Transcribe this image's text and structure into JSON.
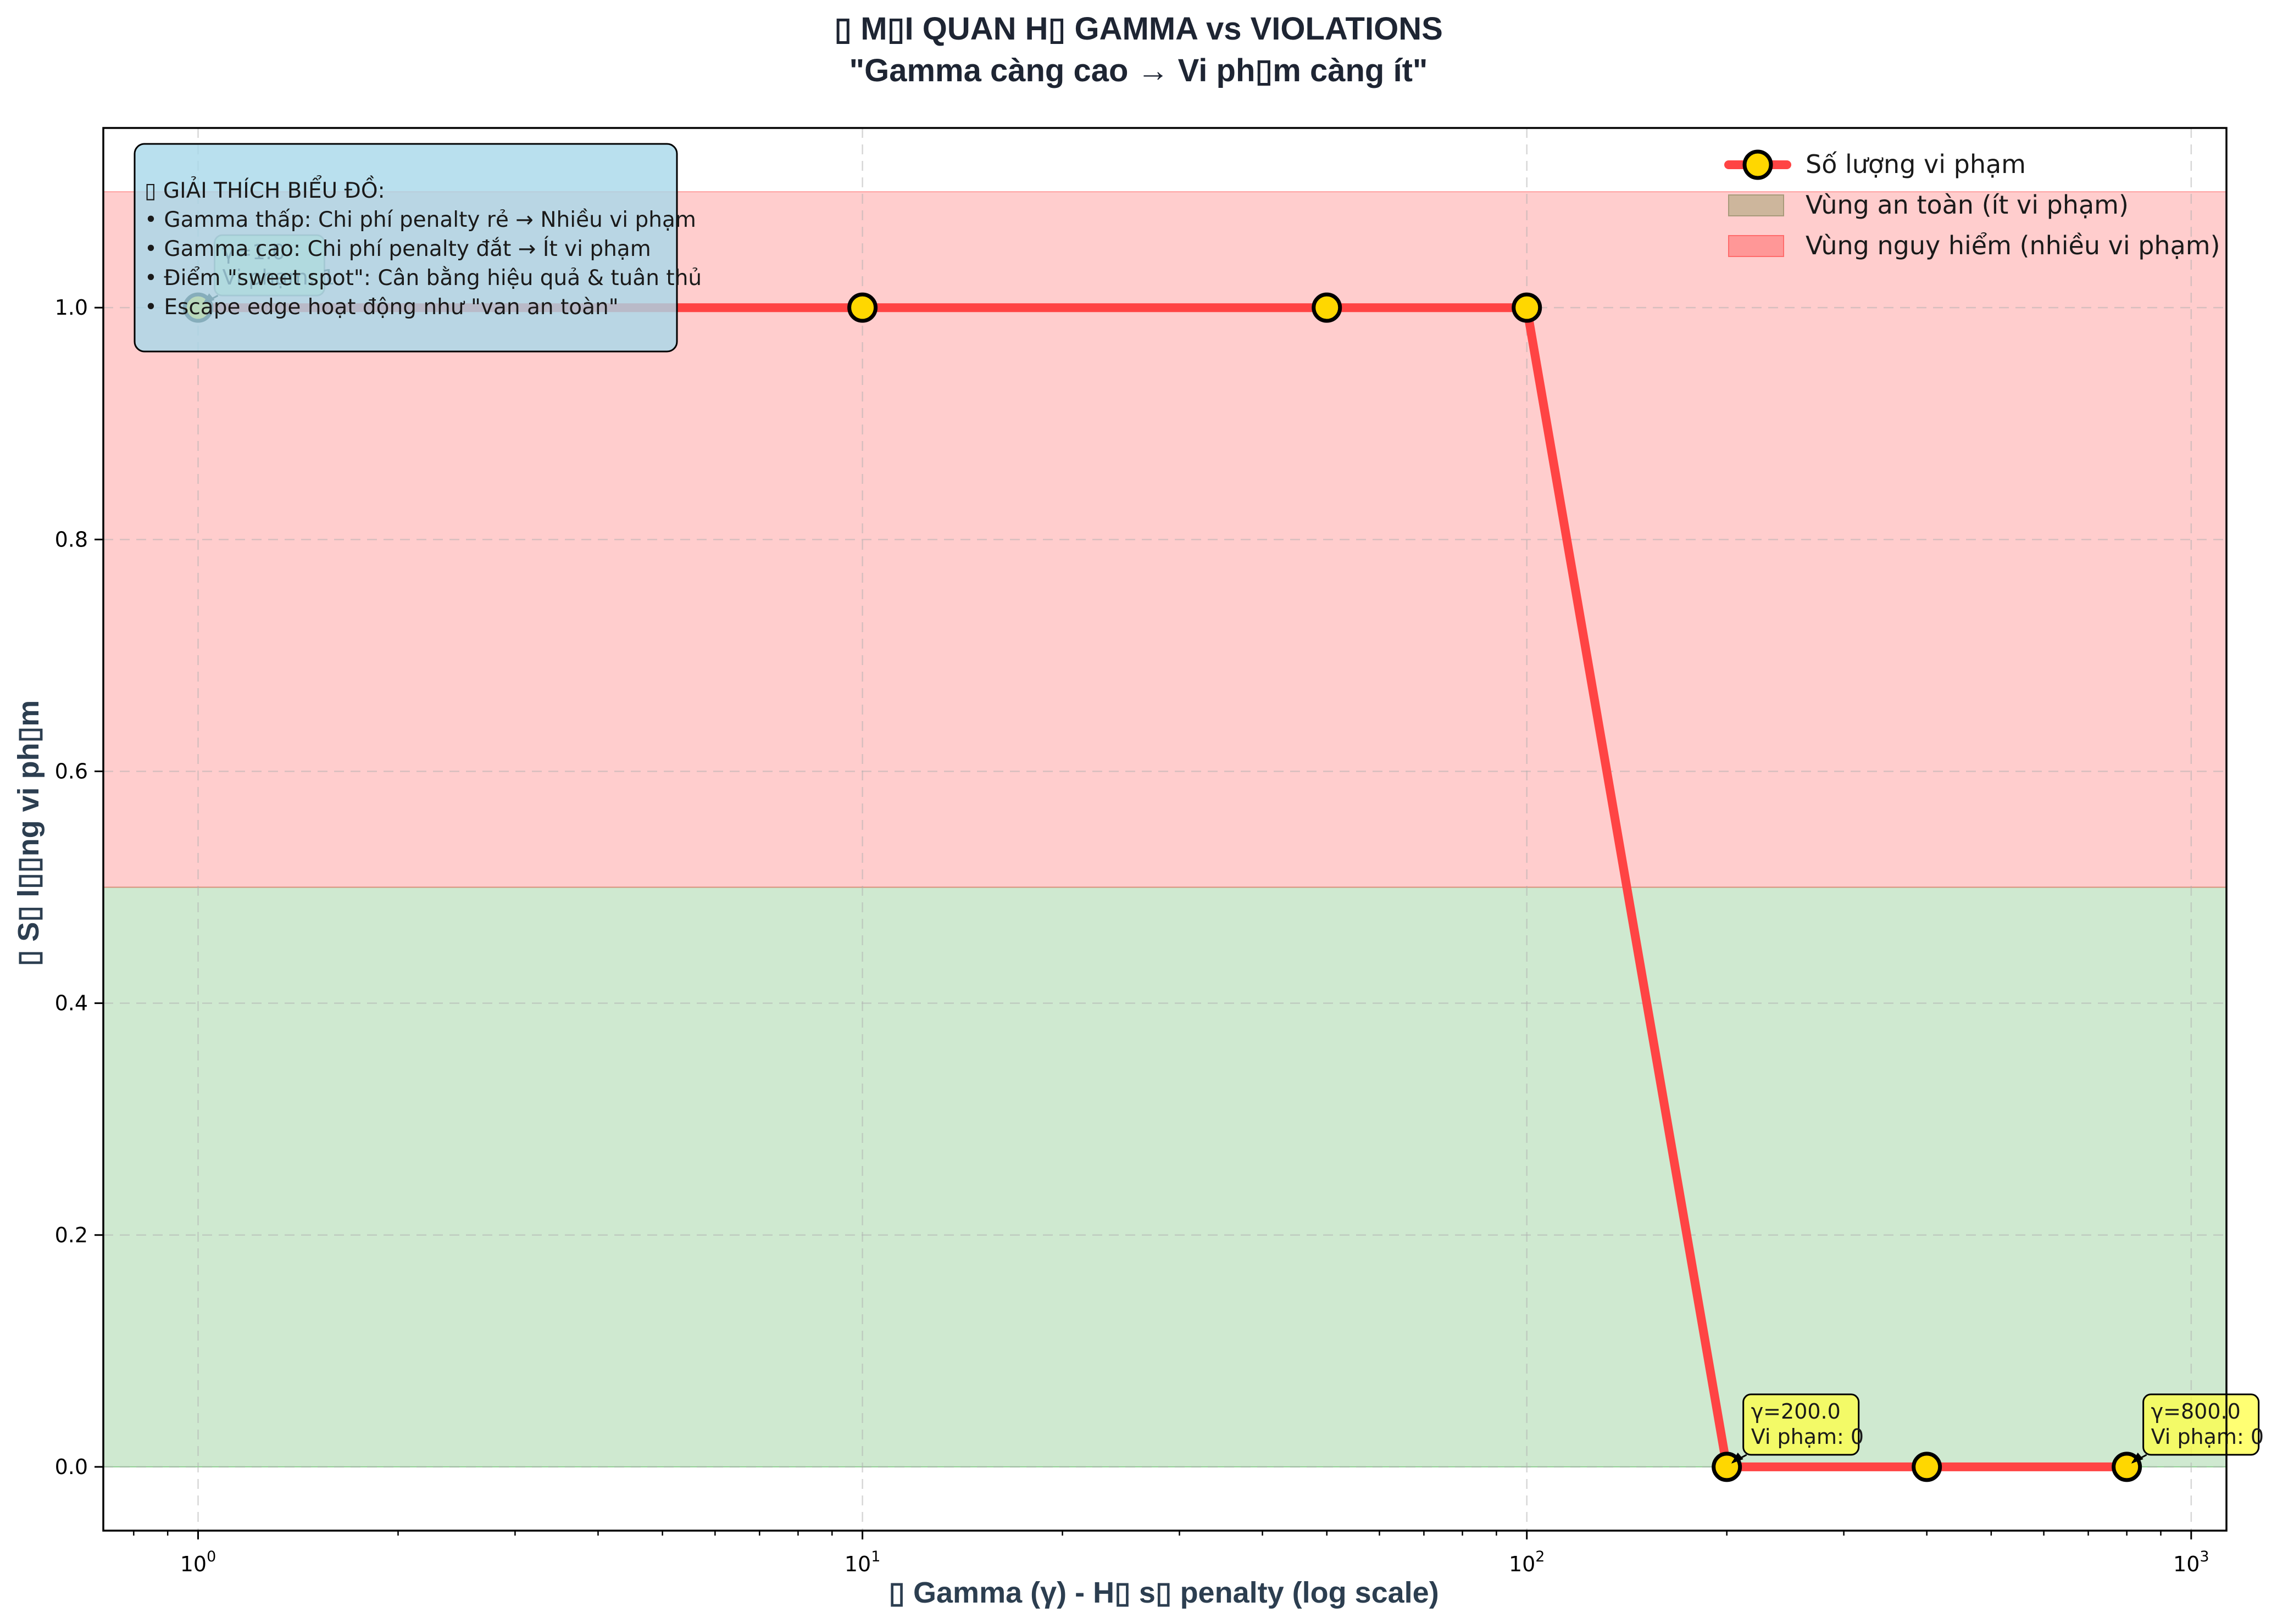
{
  "chart_data": {
    "type": "line",
    "title_line1": "▯ M▯I QUAN H▯ GAMMA vs VIOLATIONS",
    "title_line2": "\"Gamma càng cao → Vi ph▯m càng ít\"",
    "xlabel": "▯ Gamma (γ) - H▯ s▯ penalty (log scale)",
    "ylabel": "▯ S▯ l▯▯ng vi ph▯m",
    "x_scale": "log",
    "xlim": [
      0.72,
      1130
    ],
    "ylim": [
      -0.055,
      1.155
    ],
    "grid": true,
    "x_ticks": [
      {
        "value": 1,
        "base": "10",
        "exp": "0"
      },
      {
        "value": 10,
        "base": "10",
        "exp": "1"
      },
      {
        "value": 100,
        "base": "10",
        "exp": "2"
      },
      {
        "value": 1000,
        "base": "10",
        "exp": "3"
      }
    ],
    "y_ticks": [
      {
        "value": 0.0,
        "label": "0.0"
      },
      {
        "value": 0.2,
        "label": "0.2"
      },
      {
        "value": 0.4,
        "label": "0.4"
      },
      {
        "value": 0.6,
        "label": "0.6"
      },
      {
        "value": 0.8,
        "label": "0.8"
      },
      {
        "value": 1.0,
        "label": "1.0"
      }
    ],
    "series": [
      {
        "name": "Số lượng vi phạm",
        "color": "#ff4444",
        "marker_color": "#ffd700",
        "x": [
          1,
          10,
          50,
          100,
          200,
          400,
          800
        ],
        "y": [
          1,
          1,
          1,
          1,
          0,
          0,
          0
        ]
      }
    ],
    "bands": [
      {
        "name": "Vùng an toàn (ít vi phạm)",
        "y0": 0,
        "y1": 0.5,
        "color": "#4caf50",
        "opacity": 0.27
      },
      {
        "name": "Vùng nguy hiểm (nhiều vi phạm)",
        "y0": 0.5,
        "y1": 1.1,
        "color": "#ff6b6b",
        "opacity": 0.34
      }
    ],
    "legend_position": "top-right",
    "annotations": [
      {
        "x": 1,
        "y": 1,
        "lines": [
          "γ=1.0",
          "Vi phạm: 1"
        ],
        "color": "#b2f0a0"
      },
      {
        "x": 200,
        "y": 0,
        "lines": [
          "γ=200.0",
          "Vi phạm: 0"
        ],
        "color": "#ffff44"
      },
      {
        "x": 800,
        "y": 0,
        "lines": [
          "γ=800.0",
          "Vi phạm: 0"
        ],
        "color": "#ffff44"
      }
    ],
    "info_box": {
      "color": "#a8d8ea",
      "lines": [
        "▯ GIẢI THÍCH BIỂU ĐỒ:",
        "• Gamma thấp: Chi phí penalty rẻ → Nhiều vi phạm",
        "• Gamma cao: Chi phí penalty đắt → Ít vi phạm",
        "• Điểm \"sweet spot\": Cân bằng hiệu quả & tuân thủ",
        "• Escape edge hoạt động như \"van an toàn\""
      ]
    }
  }
}
